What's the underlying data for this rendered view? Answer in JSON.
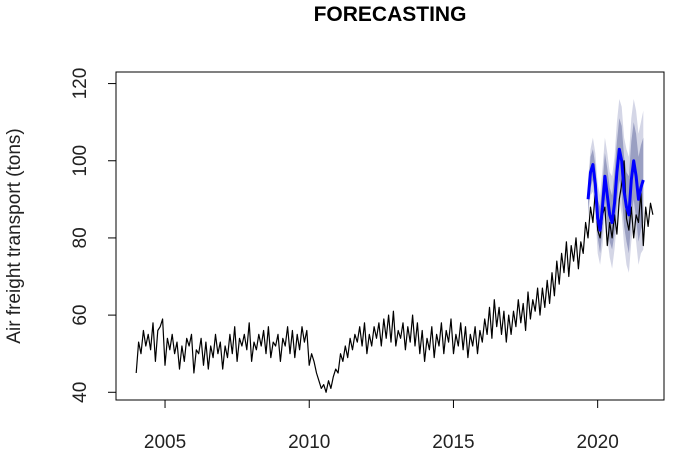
{
  "chart_data": {
    "type": "line",
    "title": "FORECASTING",
    "xlabel": "",
    "ylabel": "Air freight transport (tons)",
    "xlim": [
      2003.3,
      2022.3
    ],
    "ylim": [
      38,
      123
    ],
    "xticks": [
      2005,
      2010,
      2015,
      2020
    ],
    "yticks": [
      40,
      60,
      80,
      100,
      120
    ],
    "grid": false,
    "legend": "none",
    "colors": {
      "observed": "#000000",
      "forecast": "#0000ff",
      "interval_80": "#9a9fc2",
      "interval_95": "#d4d6e6"
    },
    "series": [
      {
        "role": "observed",
        "x_start": 2004.0,
        "x_step": 0.0833333,
        "values": [
          45,
          53,
          50,
          56,
          52,
          55,
          51,
          58,
          48,
          56,
          57,
          59,
          47,
          54,
          51,
          55,
          50,
          53,
          46,
          52,
          48,
          54,
          52,
          55,
          45,
          51,
          50,
          54,
          47,
          53,
          46,
          52,
          49,
          55,
          50,
          53,
          46,
          52,
          49,
          55,
          50,
          57,
          48,
          54,
          52,
          55,
          51,
          58,
          48,
          53,
          51,
          55,
          52,
          56,
          50,
          57,
          49,
          53,
          52,
          55,
          48,
          54,
          52,
          57,
          50,
          56,
          49,
          55,
          51,
          57,
          53,
          56,
          47,
          50,
          48,
          45,
          43,
          41,
          42,
          40,
          43,
          41,
          44,
          46,
          45,
          50,
          48,
          52,
          49,
          54,
          51,
          55,
          53,
          57,
          52,
          58,
          50,
          55,
          52,
          57,
          54,
          58,
          52,
          59,
          54,
          60,
          53,
          61,
          52,
          56,
          54,
          58,
          51,
          57,
          53,
          60,
          52,
          58,
          50,
          56,
          48,
          54,
          51,
          57,
          49,
          55,
          52,
          58,
          50,
          56,
          53,
          59,
          50,
          55,
          52,
          58,
          51,
          57,
          49,
          55,
          52,
          57,
          50,
          56,
          53,
          59,
          55,
          62,
          54,
          64,
          57,
          62,
          55,
          61,
          53,
          60,
          55,
          61,
          57,
          64,
          58,
          63,
          56,
          66,
          59,
          64,
          61,
          67,
          60,
          67,
          62,
          69,
          63,
          71,
          65,
          74,
          68,
          76,
          71,
          79,
          70,
          78,
          74,
          80,
          72,
          79,
          76,
          84,
          80,
          88,
          84,
          92,
          82,
          80,
          86,
          88,
          78,
          84,
          80,
          86,
          81,
          90,
          94,
          100,
          85,
          82,
          88,
          80,
          86,
          84,
          92,
          78,
          88,
          83,
          89,
          86
        ]
      },
      {
        "role": "forecast",
        "x_start": 2019.6667,
        "x_step": 0.0833333,
        "values": [
          90,
          97,
          99,
          94,
          85,
          82,
          88,
          96,
          91,
          86,
          84,
          89,
          97,
          103,
          100,
          92,
          88,
          86,
          95,
          100,
          96,
          90,
          93,
          95
        ],
        "interval_80_halfwidth": [
          3,
          4,
          4,
          5,
          5,
          6,
          6,
          6,
          7,
          7,
          7,
          8,
          8,
          8,
          9,
          9,
          9,
          10,
          10,
          10,
          11,
          11,
          11,
          11
        ],
        "interval_95_halfwidth": [
          5,
          6,
          7,
          8,
          9,
          9,
          10,
          10,
          11,
          11,
          12,
          12,
          13,
          13,
          14,
          14,
          15,
          15,
          16,
          16,
          17,
          17,
          17,
          18
        ]
      }
    ]
  }
}
